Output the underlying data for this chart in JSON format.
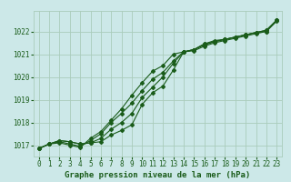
{
  "xlabel": "Graphe pression niveau de la mer (hPa)",
  "xlim": [
    -0.5,
    23.5
  ],
  "ylim": [
    1016.5,
    1022.9
  ],
  "yticks": [
    1017,
    1018,
    1019,
    1020,
    1021,
    1022
  ],
  "xticks": [
    0,
    1,
    2,
    3,
    4,
    5,
    6,
    7,
    8,
    9,
    10,
    11,
    12,
    13,
    14,
    15,
    16,
    17,
    18,
    19,
    20,
    21,
    22,
    23
  ],
  "bg_color": "#cce8e8",
  "grid_color": "#aaccbb",
  "line_color": "#1a5c1a",
  "text_color": "#1a5c1a",
  "line1": [
    1016.85,
    1017.05,
    1017.2,
    1017.15,
    1017.05,
    1017.1,
    1017.15,
    1017.45,
    1017.65,
    1017.9,
    1018.8,
    1019.3,
    1019.6,
    1020.3,
    1021.1,
    1021.2,
    1021.45,
    1021.6,
    1021.65,
    1021.75,
    1021.85,
    1021.95,
    1022.05,
    1022.5
  ],
  "line2": [
    1016.85,
    1017.05,
    1017.2,
    1017.15,
    1017.05,
    1017.1,
    1017.3,
    1017.7,
    1018.0,
    1018.4,
    1019.1,
    1019.55,
    1020.0,
    1020.6,
    1021.1,
    1021.2,
    1021.4,
    1021.55,
    1021.65,
    1021.75,
    1021.85,
    1021.95,
    1022.05,
    1022.5
  ],
  "line3": [
    1016.85,
    1017.05,
    1017.15,
    1017.05,
    1016.95,
    1017.2,
    1017.5,
    1018.0,
    1018.4,
    1018.85,
    1019.4,
    1019.9,
    1020.2,
    1020.7,
    1021.1,
    1021.15,
    1021.35,
    1021.5,
    1021.6,
    1021.7,
    1021.8,
    1021.9,
    1022.0,
    1022.45
  ],
  "line4": [
    1016.85,
    1017.05,
    1017.1,
    1017.0,
    1016.9,
    1017.3,
    1017.6,
    1018.1,
    1018.6,
    1019.2,
    1019.75,
    1020.25,
    1020.5,
    1021.0,
    1021.1,
    1021.2,
    1021.45,
    1021.55,
    1021.65,
    1021.75,
    1021.85,
    1021.95,
    1022.0,
    1022.5
  ]
}
